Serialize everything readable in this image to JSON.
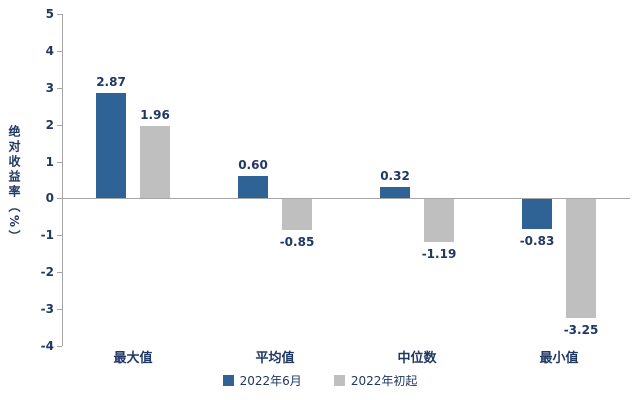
{
  "chart_data": {
    "type": "bar",
    "title": "",
    "ylabel": "绝对收益率（%）",
    "xlabel": "",
    "categories": [
      "最大值",
      "平均值",
      "中位数",
      "最小值"
    ],
    "series": [
      {
        "name": "2022年6月",
        "color": "#2f6295",
        "values": [
          2.87,
          0.6,
          0.32,
          -0.83
        ]
      },
      {
        "name": "2022年初起",
        "color": "#bfbfbf",
        "values": [
          1.96,
          -0.85,
          -1.19,
          -3.25
        ]
      }
    ],
    "ylim": [
      -4,
      5
    ],
    "yticks": [
      5,
      4,
      3,
      2,
      1,
      0,
      -1,
      -2,
      -3,
      -4
    ],
    "grid": false,
    "legend_position": "bottom",
    "value_label_decimals": 2,
    "text_color": "#203864",
    "axis_color": "#a6a6a6"
  }
}
